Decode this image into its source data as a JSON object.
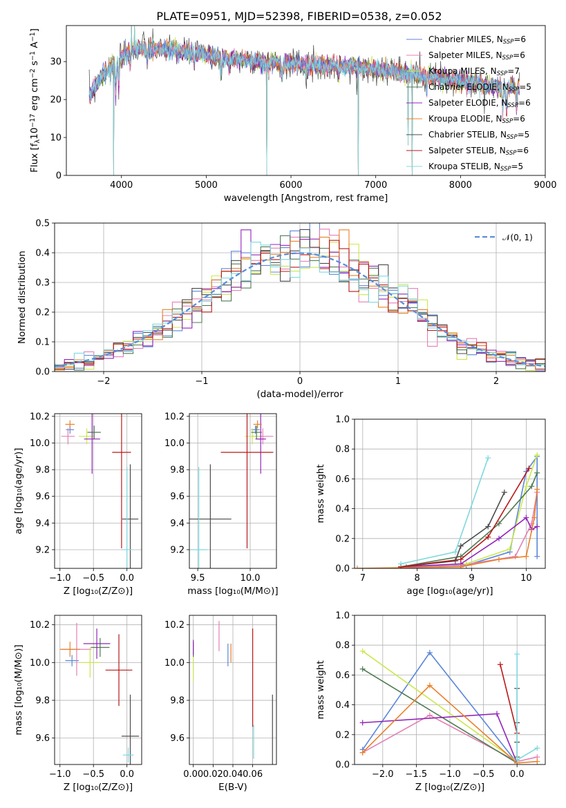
{
  "figure_title": "PLATE=0951, MJD=52398, FIBERID=0538, z=0.052",
  "colors": {
    "Chabrier MILES": "#5b86d9",
    "Salpeter MILES": "#e47fb4",
    "Kroupa MILES": "#c9e84f",
    "Chabrier ELODIE": "#4f7a52",
    "Salpeter ELODIE": "#9124b8",
    "Kroupa ELODIE": "#e8802a",
    "Chabrier STELIB": "#4a4a4a",
    "Salpeter STELIB": "#b81818",
    "Kroupa STELIB": "#7fd8de",
    "normal": "#5b8ed8"
  },
  "chart_data": [
    {
      "id": "spectrum",
      "type": "line",
      "xlabel": "wavelength [Angstrom, rest frame]",
      "ylabel": "Flux [f_λ 10^-17 erg cm^-2 s^-1 A^-1]",
      "xlim": [
        3350,
        9000
      ],
      "ylim": [
        0,
        39.5
      ],
      "xticks": [
        4000,
        5000,
        6000,
        7000,
        8000,
        9000
      ],
      "yticks": [
        0,
        10,
        20,
        30
      ],
      "grid": false,
      "legend_position": "right",
      "legend": [
        {
          "model": "Chabrier MILES",
          "base": "Chabrier MILES, N",
          "sub": "SSP",
          "tail": "=6"
        },
        {
          "model": "Salpeter MILES",
          "base": "Salpeter MILES, N",
          "sub": "SSP",
          "tail": "=6"
        },
        {
          "model": "Kroupa MILES",
          "base": "Kroupa MILES, N",
          "sub": "SSP",
          "tail": "=7"
        },
        {
          "model": "Chabrier ELODIE",
          "base": "Chabrier ELODIE, N",
          "sub": "SSP",
          "tail": "=5"
        },
        {
          "model": "Salpeter ELODIE",
          "base": "Salpeter ELODIE, N",
          "sub": "SSP",
          "tail": "=6"
        },
        {
          "model": "Kroupa ELODIE",
          "base": "Kroupa ELODIE, N",
          "sub": "SSP",
          "tail": "=6"
        },
        {
          "model": "Chabrier STELIB",
          "base": "Chabrier STELIB, N",
          "sub": "SSP",
          "tail": "=5"
        },
        {
          "model": "Salpeter STELIB",
          "base": "Salpeter STELIB, N",
          "sub": "SSP",
          "tail": "=6"
        },
        {
          "model": "Kroupa STELIB",
          "base": "Kroupa STELIB, N",
          "sub": "SSP",
          "tail": "=5"
        }
      ],
      "continuum": [
        [
          3620,
          21
        ],
        [
          3700,
          24
        ],
        [
          3800,
          27
        ],
        [
          3900,
          29
        ],
        [
          4000,
          31
        ],
        [
          4100,
          33
        ],
        [
          4300,
          33.5
        ],
        [
          4600,
          33
        ],
        [
          4900,
          32
        ],
        [
          5200,
          31
        ],
        [
          5600,
          30
        ],
        [
          6000,
          29.5
        ],
        [
          6400,
          29
        ],
        [
          6800,
          28.5
        ],
        [
          7200,
          27.5
        ],
        [
          7500,
          26.5
        ],
        [
          7800,
          25.5
        ],
        [
          8200,
          24
        ],
        [
          8600,
          23
        ],
        [
          8700,
          23
        ]
      ],
      "absorption_lines": [
        [
          3934,
          9
        ],
        [
          3969,
          8
        ],
        [
          4102,
          4
        ],
        [
          4304,
          4
        ],
        [
          4861,
          3
        ],
        [
          5175,
          6
        ],
        [
          5270,
          3
        ],
        [
          5894,
          5
        ],
        [
          6563,
          3
        ],
        [
          7600,
          4
        ],
        [
          8498,
          6
        ],
        [
          8542,
          7
        ],
        [
          8662,
          6
        ]
      ],
      "spikes": [
        [
          3910,
          0
        ],
        [
          4120,
          39.5
        ],
        [
          4155,
          39.5
        ],
        [
          5715,
          0
        ],
        [
          6795,
          0
        ],
        [
          7430,
          0
        ],
        [
          7380,
          8
        ]
      ]
    },
    {
      "id": "residuals",
      "type": "histogram",
      "xlabel": "(data-model)/error",
      "ylabel": "Normed distribution",
      "xlim": [
        -2.5,
        2.5
      ],
      "ylim": [
        0,
        0.5
      ],
      "xticks": [
        -2,
        -1,
        0,
        1,
        2
      ],
      "yticks": [
        0.0,
        0.1,
        0.2,
        0.3,
        0.4,
        0.5
      ],
      "grid": true,
      "legend_position": "top-right",
      "bin_width": 0.1,
      "normal_label": "𝒩(0, 1)"
    },
    {
      "id": "age_vs_Z",
      "type": "errorbar",
      "xlabel": "Z [log₁₀(Z/Z⊙)]",
      "ylabel": "age  [log₁₀(age/yr)]",
      "xlim": [
        -1.08,
        0.22
      ],
      "ylim": [
        9.06,
        10.22
      ],
      "xticks": [
        -1.0,
        -0.5,
        0.0
      ],
      "yticks": [
        9.2,
        9.4,
        9.6,
        9.8,
        10.0,
        10.2
      ],
      "grid": true,
      "points": [
        {
          "model": "Chabrier MILES",
          "x": -0.85,
          "y": 10.1,
          "xerr": 0.06,
          "yerr": 0.03
        },
        {
          "model": "Salpeter MILES",
          "x": -0.88,
          "y": 10.05,
          "xerr": 0.1,
          "yerr": 0.06
        },
        {
          "model": "Kroupa MILES",
          "x": -0.6,
          "y": 10.05,
          "xerr": 0.12,
          "yerr": 0.06
        },
        {
          "model": "Chabrier ELODIE",
          "x": -0.49,
          "y": 10.08,
          "xerr": 0.1,
          "yerr": 0.05
        },
        {
          "model": "Salpeter ELODIE",
          "x": -0.52,
          "y": 10.03,
          "xerr": 0.12,
          "yerr": 0.26
        },
        {
          "model": "Kroupa ELODIE",
          "x": -0.85,
          "y": 10.14,
          "xerr": 0.07,
          "yerr": 0.03
        },
        {
          "model": "Chabrier STELIB",
          "x": 0.05,
          "y": 9.43,
          "xerr": 0.12,
          "yerr": 0.41
        },
        {
          "model": "Salpeter STELIB",
          "x": -0.08,
          "y": 9.93,
          "xerr": 0.14,
          "yerr": 0.72
        },
        {
          "model": "Kroupa STELIB",
          "x": 0.0,
          "y": 9.2,
          "xerr": 0.08,
          "yerr": 0.62
        }
      ]
    },
    {
      "id": "age_vs_mass",
      "type": "errorbar",
      "xlabel": "mass [log₁₀(M/M⊙)]",
      "ylabel": "",
      "xlim": [
        9.42,
        10.25
      ],
      "ylim": [
        9.06,
        10.22
      ],
      "xticks": [
        9.5,
        10.0
      ],
      "yticks": [
        9.2,
        9.4,
        9.6,
        9.8,
        10.0,
        10.2
      ],
      "grid": true,
      "points": [
        {
          "model": "Chabrier MILES",
          "x": 10.05,
          "y": 10.1,
          "xerr": 0.04,
          "yerr": 0.03
        },
        {
          "model": "Salpeter MILES",
          "x": 10.12,
          "y": 10.05,
          "xerr": 0.1,
          "yerr": 0.06
        },
        {
          "model": "Kroupa MILES",
          "x": 10.02,
          "y": 10.05,
          "xerr": 0.07,
          "yerr": 0.06
        },
        {
          "model": "Chabrier ELODIE",
          "x": 10.06,
          "y": 10.08,
          "xerr": 0.05,
          "yerr": 0.05
        },
        {
          "model": "Salpeter ELODIE",
          "x": 10.1,
          "y": 10.03,
          "xerr": 0.05,
          "yerr": 0.26
        },
        {
          "model": "Kroupa ELODIE",
          "x": 10.07,
          "y": 10.14,
          "xerr": 0.04,
          "yerr": 0.03
        },
        {
          "model": "Chabrier STELIB",
          "x": 9.62,
          "y": 9.43,
          "xerr": 0.2,
          "yerr": 0.41
        },
        {
          "model": "Salpeter STELIB",
          "x": 9.97,
          "y": 9.93,
          "xerr": 0.25,
          "yerr": 0.72
        },
        {
          "model": "Kroupa STELIB",
          "x": 9.51,
          "y": 9.2,
          "xerr": 0.08,
          "yerr": 0.62
        }
      ]
    },
    {
      "id": "mass_vs_Z",
      "type": "errorbar",
      "xlabel": "Z [log₁₀(Z/Z⊙)]",
      "ylabel": "mass [log₁₀(M/M⊙)]",
      "xlim": [
        -1.08,
        0.22
      ],
      "ylim": [
        9.46,
        10.25
      ],
      "xticks": [
        -1.0,
        -0.5,
        0.0
      ],
      "yticks": [
        9.6,
        9.8,
        10.0,
        10.2
      ],
      "grid": true,
      "points": [
        {
          "model": "Chabrier MILES",
          "x": -0.82,
          "y": 10.01,
          "xerr": 0.1,
          "yerr": 0.03
        },
        {
          "model": "Salpeter MILES",
          "x": -0.75,
          "y": 10.07,
          "xerr": 0.22,
          "yerr": 0.14
        },
        {
          "model": "Kroupa MILES",
          "x": -0.55,
          "y": 10.0,
          "xerr": 0.15,
          "yerr": 0.08
        },
        {
          "model": "Chabrier ELODIE",
          "x": -0.4,
          "y": 10.08,
          "xerr": 0.14,
          "yerr": 0.05
        },
        {
          "model": "Salpeter ELODIE",
          "x": -0.45,
          "y": 10.1,
          "xerr": 0.2,
          "yerr": 0.08
        },
        {
          "model": "Kroupa ELODIE",
          "x": -0.85,
          "y": 10.07,
          "xerr": 0.15,
          "yerr": 0.04
        },
        {
          "model": "Chabrier STELIB",
          "x": 0.05,
          "y": 9.61,
          "xerr": 0.13,
          "yerr": 0.22
        },
        {
          "model": "Salpeter STELIB",
          "x": -0.12,
          "y": 9.96,
          "xerr": 0.2,
          "yerr": 0.19
        },
        {
          "model": "Kroupa STELIB",
          "x": 0.02,
          "y": 9.51,
          "xerr": 0.08,
          "yerr": 0.04
        }
      ]
    },
    {
      "id": "mass_vs_EBV",
      "type": "errorbar",
      "xlabel": "E(B-V)",
      "ylabel": "",
      "xlim": [
        -0.004,
        0.084
      ],
      "ylim": [
        9.46,
        10.25
      ],
      "xticks": [
        0.0,
        0.02,
        0.04,
        0.06
      ],
      "yticks": [
        9.6,
        9.8,
        10.0,
        10.2
      ],
      "grid": true,
      "points": [
        {
          "model": "Chabrier MILES",
          "x": 0.035,
          "y": 10.04,
          "xerr": 0.0,
          "yerr": 0.06
        },
        {
          "model": "Salpeter MILES",
          "x": 0.026,
          "y": 10.14,
          "xerr": 0.0,
          "yerr": 0.08
        },
        {
          "model": "Kroupa MILES",
          "x": 0.0,
          "y": 9.97,
          "xerr": 0.0,
          "yerr": 0.07
        },
        {
          "model": "Chabrier ELODIE",
          "x": 0.0,
          "y": 10.07,
          "xerr": 0.0,
          "yerr": 0.04
        },
        {
          "model": "Salpeter ELODIE",
          "x": 0.0,
          "y": 10.08,
          "xerr": 0.0,
          "yerr": 0.04
        },
        {
          "model": "Kroupa ELODIE",
          "x": 0.038,
          "y": 10.05,
          "xerr": 0.0,
          "yerr": 0.05
        },
        {
          "model": "Chabrier STELIB",
          "x": 0.08,
          "y": 9.6,
          "xerr": 0.0,
          "yerr": 0.23
        },
        {
          "model": "Salpeter STELIB",
          "x": 0.06,
          "y": 9.92,
          "xerr": 0.0,
          "yerr": 0.26
        },
        {
          "model": "Kroupa STELIB",
          "x": 0.061,
          "y": 9.58,
          "xerr": 0.0,
          "yerr": 0.09
        }
      ]
    },
    {
      "id": "weight_vs_age",
      "type": "line",
      "xlabel": "age  [log₁₀(age/yr)]",
      "ylabel": "mass weight",
      "xlim": [
        6.85,
        10.35
      ],
      "ylim": [
        0,
        1.0
      ],
      "xticks": [
        7,
        8,
        9,
        10
      ],
      "yticks": [
        0.0,
        0.2,
        0.4,
        0.6,
        0.8,
        1.0
      ],
      "grid": true,
      "series": [
        {
          "model": "Chabrier MILES",
          "x": [
            7.8,
            8.9,
            9.7,
            10.0,
            10.2,
            10.2
          ],
          "y": [
            0.01,
            0.02,
            0.11,
            0.65,
            0.75,
            0.08
          ]
        },
        {
          "model": "Salpeter MILES",
          "x": [
            7.7,
            8.8,
            9.8,
            10.1,
            10.2
          ],
          "y": [
            0.01,
            0.02,
            0.08,
            0.3,
            0.51
          ]
        },
        {
          "model": "Kroupa MILES",
          "x": [
            7.7,
            8.9,
            9.7,
            10.0,
            10.2
          ],
          "y": [
            0.01,
            0.03,
            0.13,
            0.55,
            0.76
          ]
        },
        {
          "model": "Chabrier ELODIE",
          "x": [
            7.7,
            8.8,
            9.5,
            10.1,
            10.2
          ],
          "y": [
            0.01,
            0.08,
            0.3,
            0.55,
            0.64
          ]
        },
        {
          "model": "Salpeter ELODIE",
          "x": [
            7.7,
            8.8,
            9.5,
            10.0,
            10.1,
            10.2
          ],
          "y": [
            0.01,
            0.03,
            0.2,
            0.34,
            0.26,
            0.28
          ]
        },
        {
          "model": "Kroupa ELODIE",
          "x": [
            6.9,
            8.8,
            9.5,
            10.0,
            10.15,
            10.2
          ],
          "y": [
            0.0,
            0.01,
            0.06,
            0.08,
            0.34,
            0.53
          ]
        },
        {
          "model": "Chabrier STELIB",
          "x": [
            7.7,
            8.7,
            8.8,
            9.3,
            9.6
          ],
          "y": [
            0.01,
            0.05,
            0.15,
            0.28,
            0.51
          ]
        },
        {
          "model": "Salpeter STELIB",
          "x": [
            7.7,
            8.8,
            9.3,
            10.05
          ],
          "y": [
            0.01,
            0.06,
            0.21,
            0.67
          ]
        },
        {
          "model": "Kroupa STELIB",
          "x": [
            7.7,
            8.7,
            9.3
          ],
          "y": [
            0.03,
            0.11,
            0.74
          ]
        }
      ]
    },
    {
      "id": "weight_vs_Z",
      "type": "line",
      "xlabel": "Z [log₁₀(Z/Z⊙)]",
      "ylabel": "mass weight",
      "xlim": [
        -2.42,
        0.42
      ],
      "ylim": [
        0,
        1.0
      ],
      "xticks": [
        -2.0,
        -1.5,
        -1.0,
        -0.5,
        0.0
      ],
      "yticks": [
        0.0,
        0.2,
        0.4,
        0.6,
        0.8,
        1.0
      ],
      "grid": true,
      "series": [
        {
          "model": "Chabrier MILES",
          "x": [
            -2.3,
            -1.3,
            0.0
          ],
          "y": [
            0.1,
            0.75,
            0.01
          ]
        },
        {
          "model": "Salpeter MILES",
          "x": [
            -2.3,
            -1.3,
            0.0,
            0.3
          ],
          "y": [
            0.08,
            0.33,
            0.02,
            0.05
          ]
        },
        {
          "model": "Kroupa MILES",
          "x": [
            -2.3,
            0.0
          ],
          "y": [
            0.76,
            0.02
          ]
        },
        {
          "model": "Chabrier ELODIE",
          "x": [
            -2.3,
            0.0
          ],
          "y": [
            0.64,
            0.01
          ]
        },
        {
          "model": "Salpeter ELODIE",
          "x": [
            -2.3,
            -0.3,
            0.0
          ],
          "y": [
            0.28,
            0.34,
            0.01
          ]
        },
        {
          "model": "Kroupa ELODIE",
          "x": [
            -2.3,
            -1.3,
            0.0,
            0.3
          ],
          "y": [
            0.08,
            0.53,
            0.01,
            0.02
          ]
        },
        {
          "model": "Chabrier STELIB",
          "x": [
            0.0,
            0.0,
            0.0,
            0.0
          ],
          "y": [
            0.51,
            0.28,
            0.15,
            0.05
          ]
        },
        {
          "model": "Salpeter STELIB",
          "x": [
            -0.25,
            0.0
          ],
          "y": [
            0.67,
            0.21
          ]
        },
        {
          "model": "Kroupa STELIB",
          "x": [
            0.0,
            0.0,
            0.3
          ],
          "y": [
            0.74,
            0.03,
            0.11
          ]
        }
      ]
    }
  ]
}
